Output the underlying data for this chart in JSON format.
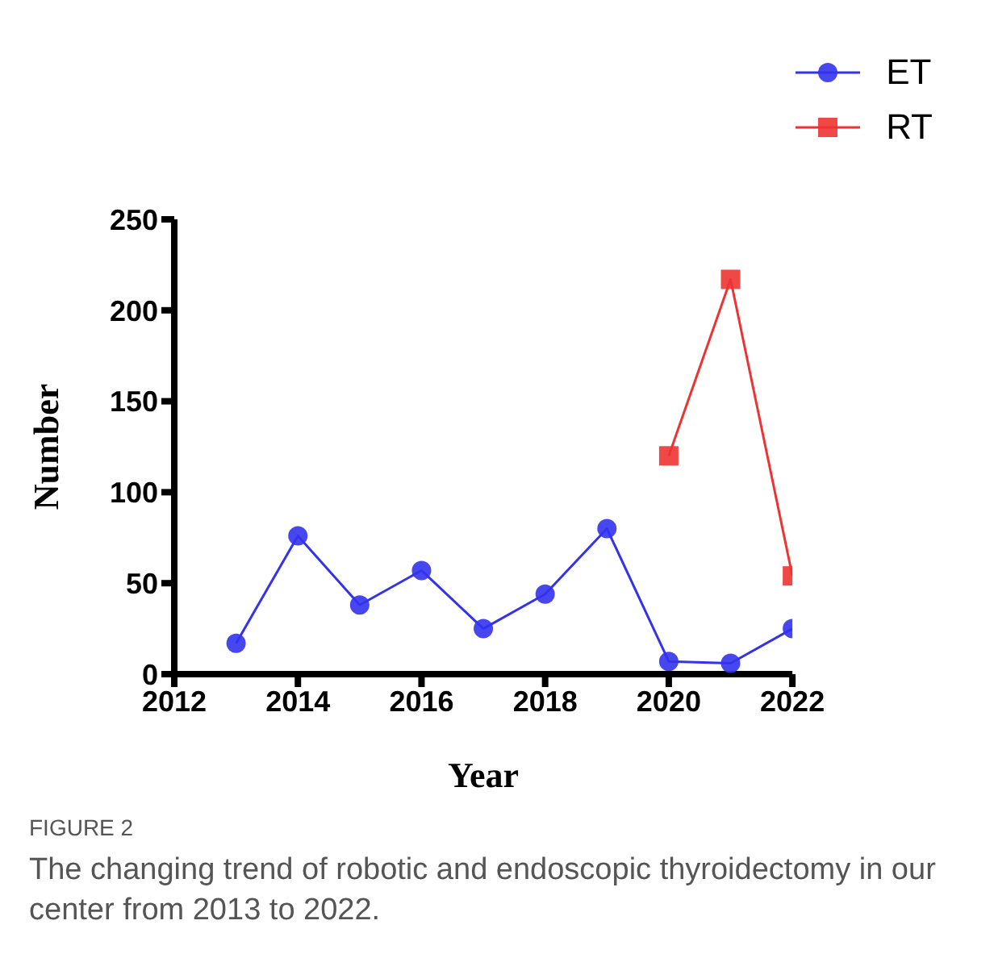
{
  "chart_data": {
    "type": "line",
    "xlabel": "Year",
    "ylabel": "Number",
    "xlim": [
      2012,
      2022
    ],
    "xticks": [
      2012,
      2014,
      2016,
      2018,
      2020,
      2022
    ],
    "ylim": [
      0,
      250
    ],
    "yticks": [
      0,
      50,
      100,
      150,
      200,
      250
    ],
    "grid": false,
    "legend": "top right",
    "line_style": "solid",
    "series": [
      {
        "name": "ET",
        "color": "#3333ee",
        "marker": "circle",
        "x": [
          2013,
          2014,
          2015,
          2016,
          2017,
          2018,
          2019,
          2020,
          2021,
          2022
        ],
        "values": [
          17,
          76,
          38,
          57,
          25,
          44,
          80,
          7,
          6,
          25
        ]
      },
      {
        "name": "RT",
        "color": "#ee3333",
        "marker": "square",
        "x": [
          2020,
          2021,
          2022
        ],
        "values": [
          120,
          217,
          54
        ]
      }
    ],
    "annotations": [
      "FIGURE 2",
      "The changing trend of robotic and endoscopic thyroidectomy in our center from 2013 to 2022."
    ]
  }
}
